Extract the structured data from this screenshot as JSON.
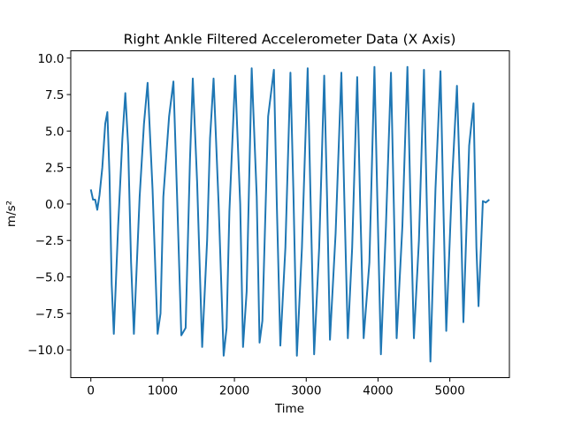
{
  "chart_data": {
    "type": "line",
    "title": "Right Ankle Filtered Accelerometer Data (X Axis)",
    "xlabel": "Time",
    "ylabel": "m/s²",
    "xlim": [
      -280,
      5830
    ],
    "ylim": [
      -11.9,
      10.5
    ],
    "xticks": [
      0,
      1000,
      2000,
      3000,
      4000,
      5000
    ],
    "yticks": [
      -10.0,
      -7.5,
      -5.0,
      -2.5,
      0.0,
      2.5,
      5.0,
      7.5,
      10.0
    ],
    "xtick_labels": [
      "0",
      "1000",
      "2000",
      "3000",
      "4000",
      "5000"
    ],
    "ytick_labels": [
      "−10.0",
      "−7.5",
      "−5.0",
      "−2.5",
      "0.0",
      "2.5",
      "5.0",
      "7.5",
      "10.0"
    ],
    "grid": false,
    "series": [
      {
        "color": "#1f77b4",
        "x": [
          0,
          30,
          60,
          90,
          120,
          160,
          200,
          230,
          260,
          290,
          320,
          380,
          440,
          480,
          520,
          560,
          600,
          680,
          740,
          790,
          860,
          930,
          970,
          1010,
          1090,
          1150,
          1200,
          1260,
          1320,
          1380,
          1420,
          1480,
          1550,
          1620,
          1660,
          1710,
          1780,
          1850,
          1890,
          1930,
          2010,
          2080,
          2120,
          2170,
          2240,
          2310,
          2350,
          2390,
          2470,
          2550,
          2590,
          2640,
          2710,
          2780,
          2820,
          2870,
          2940,
          3020,
          3060,
          3110,
          3180,
          3250,
          3290,
          3330,
          3410,
          3490,
          3530,
          3580,
          3640,
          3710,
          3750,
          3800,
          3880,
          3950,
          3990,
          4040,
          4110,
          4180,
          4220,
          4260,
          4340,
          4410,
          4450,
          4500,
          4570,
          4640,
          4680,
          4730,
          4800,
          4870,
          4910,
          4950,
          5030,
          5100,
          5150,
          5190,
          5270,
          5330,
          5370,
          5400,
          5430,
          5460,
          5500,
          5550
        ],
        "y": [
          1.0,
          0.3,
          0.3,
          -0.4,
          0.6,
          2.5,
          5.5,
          6.3,
          2.0,
          -5.5,
          -8.9,
          -1.5,
          4.5,
          7.6,
          4.0,
          -4.0,
          -8.9,
          0.5,
          5.5,
          8.3,
          1.0,
          -8.9,
          -7.5,
          0.5,
          6.0,
          8.4,
          0.8,
          -9.0,
          -8.5,
          3.0,
          8.6,
          1.5,
          -9.8,
          -2.5,
          4.5,
          8.6,
          0.0,
          -10.4,
          -8.5,
          -0.5,
          8.8,
          0.0,
          -9.8,
          -6.0,
          9.3,
          0.5,
          -9.5,
          -8.0,
          6.0,
          9.2,
          0.0,
          -9.7,
          -3.0,
          9.0,
          1.0,
          -10.4,
          -3.0,
          9.3,
          0.5,
          -10.3,
          -3.0,
          8.8,
          0.5,
          -9.3,
          -2.0,
          9.0,
          0.5,
          -9.2,
          -3.0,
          8.7,
          0.5,
          -9.2,
          -4.0,
          9.4,
          0.5,
          -10.3,
          -1.5,
          9.0,
          0.0,
          -9.2,
          -1.5,
          9.4,
          0.5,
          -9.2,
          -2.5,
          9.2,
          0.0,
          -10.8,
          1.0,
          9.1,
          0.0,
          -8.7,
          1.5,
          8.1,
          0.0,
          -8.1,
          4.0,
          6.9,
          -3.0,
          -7.0,
          -3.5,
          0.2,
          0.1,
          0.3
        ]
      }
    ]
  }
}
